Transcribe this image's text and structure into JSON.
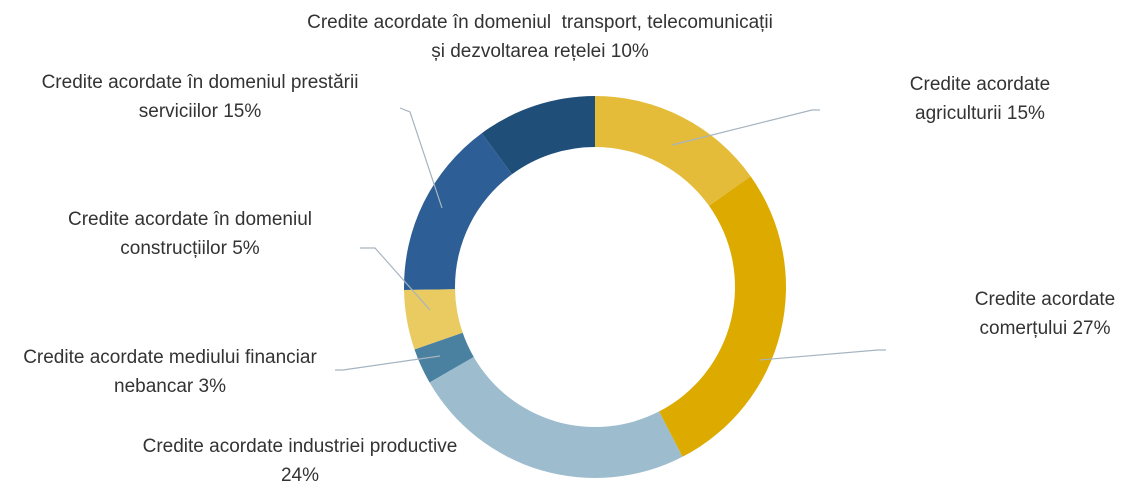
{
  "chart_data": {
    "type": "donut",
    "categories": [
      "Credite acordate agriculturii",
      "Credite acordate comerțului",
      "Credite acordate industriei productive",
      "Credite acordate mediului financiar nebancar",
      "Credite acordate în domeniul construcțiilor",
      "Credite acordate în domeniul prestării serviciilor",
      "Credite acordate în domeniul  transport, telecomunicații și dezvoltarea rețelei"
    ],
    "values": [
      15,
      27,
      24,
      3,
      5,
      15,
      10
    ],
    "value_labels": [
      "15%",
      "27%",
      "24%",
      "3%",
      "5%",
      "15%",
      "10%"
    ],
    "colors": [
      "#E4BC3A",
      "#DDAA00",
      "#9DBCCD",
      "#4A80A0",
      "#EACB62",
      "#2E5E96",
      "#1F4E79"
    ]
  }
}
